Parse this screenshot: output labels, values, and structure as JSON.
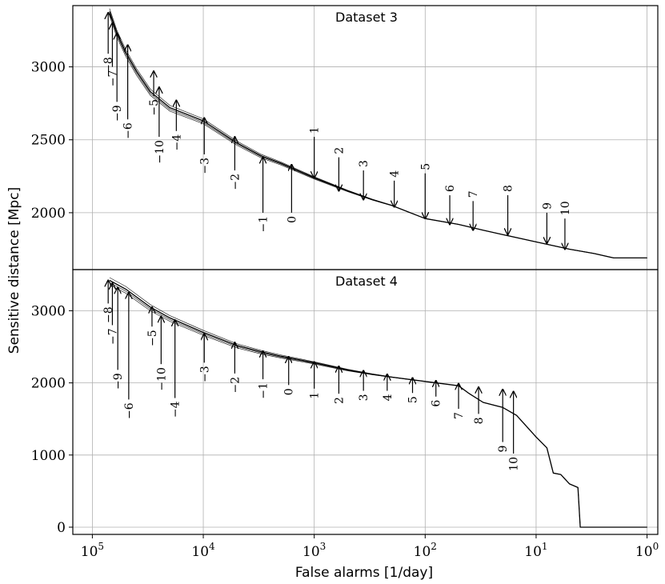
{
  "chart_data": {
    "type": "line",
    "xlabel": "False alarms [1/day]",
    "ylabel": "Sensitive distance [Mpc]",
    "x_scale": "log",
    "x_reversed": true,
    "xlim": [
      150000,
      0.8
    ],
    "x_ticks": [
      {
        "value": 100000,
        "base": "10",
        "exp": "5"
      },
      {
        "value": 10000,
        "base": "10",
        "exp": "4"
      },
      {
        "value": 1000,
        "base": "10",
        "exp": "3"
      },
      {
        "value": 100,
        "base": "10",
        "exp": "2"
      },
      {
        "value": 10,
        "base": "10",
        "exp": "1"
      },
      {
        "value": 1,
        "base": "10",
        "exp": "0"
      }
    ],
    "grid": true,
    "panels": [
      {
        "title": "Dataset 3",
        "ylim": [
          1610,
          3420
        ],
        "y_ticks": [
          "2000",
          "2500",
          "3000"
        ],
        "y_tick_values": [
          2000,
          2500,
          3000
        ],
        "curve": [
          [
            70000,
            3380
          ],
          [
            60000,
            3230
          ],
          [
            50000,
            3100
          ],
          [
            40000,
            2970
          ],
          [
            30000,
            2830
          ],
          [
            20000,
            2720
          ],
          [
            10000,
            2630
          ],
          [
            5000,
            2480
          ],
          [
            3000,
            2390
          ],
          [
            2000,
            2340
          ],
          [
            1000,
            2240
          ],
          [
            500,
            2150
          ],
          [
            300,
            2090
          ],
          [
            200,
            2050
          ],
          [
            100,
            1960
          ],
          [
            50,
            1920
          ],
          [
            30,
            1880
          ],
          [
            20,
            1850
          ],
          [
            10,
            1800
          ],
          [
            5,
            1750
          ],
          [
            3,
            1720
          ],
          [
            2,
            1690
          ],
          [
            1,
            1690
          ]
        ],
        "arrows": [
          {
            "label": "−8",
            "x": 72000,
            "tail": 3090,
            "head": 3370
          },
          {
            "label": "−7",
            "x": 66000,
            "tail": 3000,
            "head": 3300
          },
          {
            "label": "−9",
            "x": 60000,
            "tail": 2760,
            "head": 3230
          },
          {
            "label": "−6",
            "x": 48000,
            "tail": 2640,
            "head": 3150
          },
          {
            "label": "−5",
            "x": 28000,
            "tail": 2800,
            "head": 2970
          },
          {
            "label": "−10",
            "x": 25000,
            "tail": 2520,
            "head": 2860
          },
          {
            "label": "−4",
            "x": 17500,
            "tail": 2560,
            "head": 2770
          },
          {
            "label": "−3",
            "x": 9800,
            "tail": 2400,
            "head": 2650
          },
          {
            "label": "−2",
            "x": 5200,
            "tail": 2290,
            "head": 2520
          },
          {
            "label": "−1",
            "x": 2900,
            "tail": 2000,
            "head": 2380
          },
          {
            "label": "0",
            "x": 1600,
            "tail": 2000,
            "head": 2330
          },
          {
            "label": "1",
            "x": 1000,
            "tail": 2520,
            "head": 2240
          },
          {
            "label": "2",
            "x": 600,
            "tail": 2380,
            "head": 2150
          },
          {
            "label": "3",
            "x": 360,
            "tail": 2290,
            "head": 2090
          },
          {
            "label": "4",
            "x": 190,
            "tail": 2220,
            "head": 2040
          },
          {
            "label": "5",
            "x": 100,
            "tail": 2270,
            "head": 1960
          },
          {
            "label": "6",
            "x": 60,
            "tail": 2120,
            "head": 1920
          },
          {
            "label": "7",
            "x": 37,
            "tail": 2080,
            "head": 1880
          },
          {
            "label": "8",
            "x": 18,
            "tail": 2120,
            "head": 1850
          },
          {
            "label": "9",
            "x": 8,
            "tail": 2000,
            "head": 1790
          },
          {
            "label": "10",
            "x": 5.5,
            "tail": 1960,
            "head": 1750
          }
        ]
      },
      {
        "title": "Dataset 4",
        "ylim": [
          -100,
          3570
        ],
        "y_ticks": [
          "0",
          "1000",
          "2000",
          "3000"
        ],
        "y_tick_values": [
          0,
          1000,
          2000,
          3000
        ],
        "curve": [
          [
            70000,
            3420
          ],
          [
            50000,
            3300
          ],
          [
            30000,
            3050
          ],
          [
            20000,
            2900
          ],
          [
            10000,
            2700
          ],
          [
            5000,
            2520
          ],
          [
            3000,
            2430
          ],
          [
            2000,
            2370
          ],
          [
            1000,
            2280
          ],
          [
            500,
            2180
          ],
          [
            300,
            2120
          ],
          [
            200,
            2080
          ],
          [
            100,
            2020
          ],
          [
            50,
            1960
          ],
          [
            40,
            1850
          ],
          [
            30,
            1730
          ],
          [
            20,
            1660
          ],
          [
            15,
            1550
          ],
          [
            10,
            1250
          ],
          [
            8,
            1100
          ],
          [
            7,
            750
          ],
          [
            6,
            730
          ],
          [
            5,
            600
          ],
          [
            4.2,
            550
          ],
          [
            4,
            0
          ],
          [
            2,
            0
          ],
          [
            1,
            0
          ]
        ],
        "arrows": [
          {
            "label": "−8",
            "x": 72000,
            "tail": 3100,
            "head": 3420
          },
          {
            "label": "−7",
            "x": 66000,
            "tail": 2800,
            "head": 3380
          },
          {
            "label": "−9",
            "x": 59000,
            "tail": 2180,
            "head": 3320
          },
          {
            "label": "−6",
            "x": 47000,
            "tail": 1770,
            "head": 3250
          },
          {
            "label": "−5",
            "x": 29000,
            "tail": 2780,
            "head": 3050
          },
          {
            "label": "−10",
            "x": 24000,
            "tail": 2260,
            "head": 2920
          },
          {
            "label": "−4",
            "x": 18000,
            "tail": 1790,
            "head": 2870
          },
          {
            "label": "−3",
            "x": 9800,
            "tail": 2280,
            "head": 2680
          },
          {
            "label": "−2",
            "x": 5200,
            "tail": 2130,
            "head": 2560
          },
          {
            "label": "−1",
            "x": 2900,
            "tail": 2050,
            "head": 2440
          },
          {
            "label": "0",
            "x": 1700,
            "tail": 1970,
            "head": 2360
          },
          {
            "label": "1",
            "x": 1000,
            "tail": 1920,
            "head": 2290
          },
          {
            "label": "2",
            "x": 600,
            "tail": 1850,
            "head": 2230
          },
          {
            "label": "3",
            "x": 360,
            "tail": 1890,
            "head": 2170
          },
          {
            "label": "4",
            "x": 220,
            "tail": 1890,
            "head": 2120
          },
          {
            "label": "5",
            "x": 130,
            "tail": 1860,
            "head": 2070
          },
          {
            "label": "6",
            "x": 80,
            "tail": 1810,
            "head": 2030
          },
          {
            "label": "7",
            "x": 50,
            "tail": 1640,
            "head": 1990
          },
          {
            "label": "8",
            "x": 33,
            "tail": 1570,
            "head": 1940
          },
          {
            "label": "9",
            "x": 20,
            "tail": 1180,
            "head": 1910
          },
          {
            "label": "10",
            "x": 16,
            "tail": 1020,
            "head": 1880
          }
        ]
      }
    ]
  }
}
